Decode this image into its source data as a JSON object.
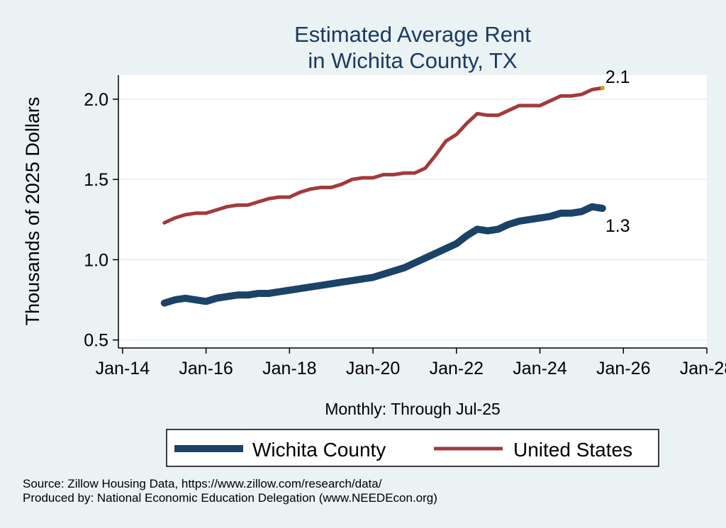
{
  "chart_data": {
    "type": "line",
    "title": [
      "Estimated Average Rent",
      "in Wichita County, TX"
    ],
    "ylabel": "Thousands of 2025 Dollars",
    "xlabel": "Monthly: Through Jul-25",
    "ylim": [
      0.45,
      2.15
    ],
    "yticks": [
      0.5,
      1.0,
      1.5,
      2.0
    ],
    "ytick_labels": [
      "0.5",
      "1.0",
      "1.5",
      "2.0"
    ],
    "xlim": [
      2013.9,
      2028.0
    ],
    "xticks": [
      2014,
      2016,
      2018,
      2020,
      2022,
      2024,
      2026,
      2028
    ],
    "xtick_labels": [
      "Jan-14",
      "Jan-16",
      "Jan-18",
      "Jan-20",
      "Jan-22",
      "Jan-24",
      "Jan-26",
      "Jan-28"
    ],
    "grid": true,
    "legend_position": "bottom",
    "series": [
      {
        "name": "Wichita County",
        "color": "#1b4367",
        "end_label": "1.3",
        "x": [
          2015.0,
          2015.25,
          2015.5,
          2015.75,
          2016.0,
          2016.25,
          2016.5,
          2016.75,
          2017.0,
          2017.25,
          2017.5,
          2017.75,
          2018.0,
          2018.25,
          2018.5,
          2018.75,
          2019.0,
          2019.25,
          2019.5,
          2019.75,
          2020.0,
          2020.25,
          2020.5,
          2020.75,
          2021.0,
          2021.25,
          2021.5,
          2021.75,
          2022.0,
          2022.25,
          2022.5,
          2022.75,
          2023.0,
          2023.25,
          2023.5,
          2023.75,
          2024.0,
          2024.25,
          2024.5,
          2024.75,
          2025.0,
          2025.25,
          2025.5
        ],
        "y": [
          0.73,
          0.75,
          0.76,
          0.75,
          0.74,
          0.76,
          0.77,
          0.78,
          0.78,
          0.79,
          0.79,
          0.8,
          0.81,
          0.82,
          0.83,
          0.84,
          0.85,
          0.86,
          0.87,
          0.88,
          0.89,
          0.91,
          0.93,
          0.95,
          0.98,
          1.01,
          1.04,
          1.07,
          1.1,
          1.15,
          1.19,
          1.18,
          1.19,
          1.22,
          1.24,
          1.25,
          1.26,
          1.27,
          1.29,
          1.29,
          1.3,
          1.33,
          1.32
        ]
      },
      {
        "name": "United States",
        "color": "#a33a3a",
        "end_label": "2.1",
        "x": [
          2015.0,
          2015.25,
          2015.5,
          2015.75,
          2016.0,
          2016.25,
          2016.5,
          2016.75,
          2017.0,
          2017.25,
          2017.5,
          2017.75,
          2018.0,
          2018.25,
          2018.5,
          2018.75,
          2019.0,
          2019.25,
          2019.5,
          2019.75,
          2020.0,
          2020.25,
          2020.5,
          2020.75,
          2021.0,
          2021.25,
          2021.5,
          2021.75,
          2022.0,
          2022.25,
          2022.5,
          2022.75,
          2023.0,
          2023.25,
          2023.5,
          2023.75,
          2024.0,
          2024.25,
          2024.5,
          2024.75,
          2025.0,
          2025.25,
          2025.5
        ],
        "y": [
          1.23,
          1.26,
          1.28,
          1.29,
          1.29,
          1.31,
          1.33,
          1.34,
          1.34,
          1.36,
          1.38,
          1.39,
          1.39,
          1.42,
          1.44,
          1.45,
          1.45,
          1.47,
          1.5,
          1.51,
          1.51,
          1.53,
          1.53,
          1.54,
          1.54,
          1.57,
          1.65,
          1.74,
          1.78,
          1.85,
          1.91,
          1.9,
          1.9,
          1.93,
          1.96,
          1.96,
          1.96,
          1.99,
          2.02,
          2.02,
          2.03,
          2.06,
          2.07
        ]
      }
    ]
  },
  "notes": {
    "source": "Source: Zillow Housing Data, https://www.zillow.com/research/data/",
    "produced_by": "Produced by: National Economic Education Delegation (www.NEEDEcon.org)"
  }
}
